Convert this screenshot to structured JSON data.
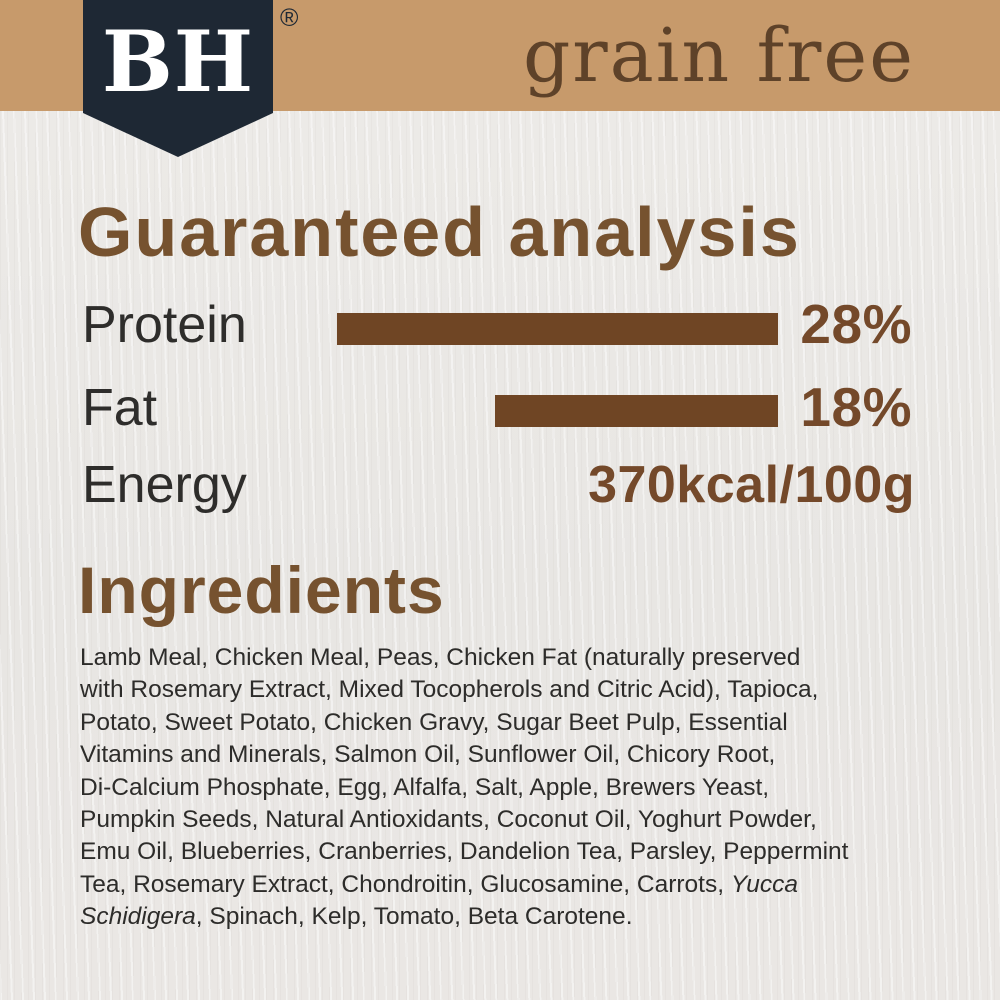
{
  "brand": {
    "logo_text": "BH",
    "registered_mark": "®"
  },
  "banner": {
    "label": "grain free"
  },
  "guaranteed_analysis": {
    "heading": "Guaranteed analysis",
    "protein": {
      "label": "Protein",
      "value": "28%",
      "percent": 28
    },
    "fat": {
      "label": "Fat",
      "value": "18%",
      "percent": 18
    },
    "energy": {
      "label": "Energy",
      "value": "370kcal/100g"
    }
  },
  "ingredients": {
    "heading": "Ingredients",
    "lines": [
      "Lamb Meal, Chicken Meal, Peas, Chicken Fat (naturally preserved",
      "with Rosemary Extract, Mixed Tocopherols and Citric Acid), Tapioca,",
      "Potato, Sweet Potato, Chicken Gravy, Sugar Beet Pulp, Essential",
      "Vitamins and Minerals, Salmon Oil, Sunflower Oil, Chicory Root,",
      "Di-Calcium Phosphate, Egg, Alfalfa, Salt, Apple, Brewers Yeast,",
      "Pumpkin Seeds, Natural Antioxidants, Coconut Oil, Yoghurt Powder,",
      "Emu Oil, Blueberries, Cranberries, Dandelion Tea, Parsley, Peppermint"
    ],
    "line8": {
      "text": "Tea, Rosemary Extract, Chondroitin, Glucosamine, Carrots, ",
      "italic": "Yucca"
    },
    "line9": {
      "italic": "Schidigera",
      "rest": ", Spinach, Kelp, Tomato, Beta Carotene."
    }
  },
  "colors": {
    "banner_tan": "#c79a6b",
    "badge_navy": "#1e2834",
    "accent_brown": "#74492a",
    "bar_brown": "#6f4524",
    "heading_brown": "#76522f",
    "text_dark": "#2d2c2a",
    "background": "#eae8e6"
  }
}
